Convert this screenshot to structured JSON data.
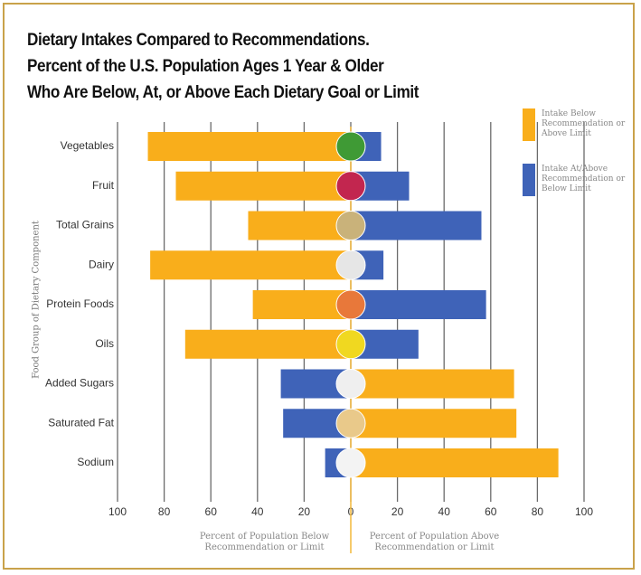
{
  "chart_data": {
    "type": "bar",
    "orientation": "horizontal",
    "title": [
      "Dietary Intakes Compared to Recommendations.",
      "Percent of the U.S. Population Ages 1 Year & Older",
      "Who Are Below, At, or Above Each Dietary Goal or Limit"
    ],
    "y_label": "Food Group of Dietary Component",
    "x_label_left": "Percent of Population Below Recommendation or Limit",
    "x_label_right": "Percent of Population Above Recommendation or Limit",
    "categories": [
      "Vegetables",
      "Fruit",
      "Total Grains",
      "Dairy",
      "Protein Foods",
      "Oils",
      "Added Sugars",
      "Saturated Fat",
      "Sodium"
    ],
    "series": [
      {
        "name": "Intake Below Recommendation or Above Limit",
        "color": "#f9ae1b",
        "values": [
          -87,
          -75,
          -44,
          -86,
          -42,
          -71,
          70,
          71,
          89
        ]
      },
      {
        "name": "Intake At/Above Recommendation or Below Limit",
        "color": "#3f63b8",
        "values": [
          13,
          25,
          56,
          14,
          58,
          29,
          -30,
          -29,
          -11
        ]
      }
    ],
    "xlim": [
      -100,
      100
    ],
    "xticks": [
      {
        "value": -100,
        "label": "100"
      },
      {
        "value": -80,
        "label": "80"
      },
      {
        "value": -60,
        "label": "60"
      },
      {
        "value": -40,
        "label": "40"
      },
      {
        "value": -20,
        "label": "20"
      },
      0,
      20,
      40,
      60,
      80,
      100
    ],
    "grid": true
  }
}
